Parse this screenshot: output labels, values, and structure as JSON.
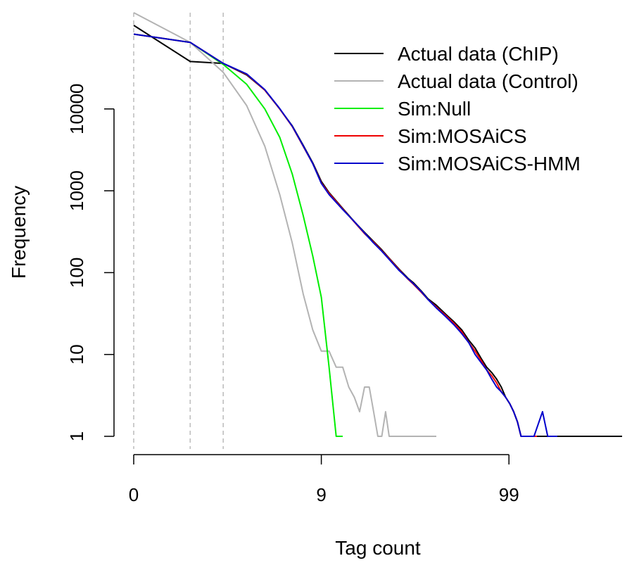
{
  "chart_data": {
    "type": "line",
    "title": "",
    "xlabel": "Tag count",
    "ylabel": "Frequency",
    "x_scale": "log1p",
    "y_scale": "log",
    "xlim": [
      0,
      400
    ],
    "ylim": [
      1,
      150000
    ],
    "x_ticks": [
      0,
      9,
      99
    ],
    "x_tick_labels": [
      "0",
      "9",
      "99"
    ],
    "y_ticks": [
      1,
      10,
      100,
      1000,
      10000
    ],
    "y_tick_labels": [
      "1",
      "10",
      "100",
      "1000",
      "10000"
    ],
    "grid": false,
    "legend_position": "top-right",
    "reference_lines": {
      "style": "dashed",
      "color": "#bfbfbf",
      "x": [
        0,
        1,
        2
      ]
    },
    "series": [
      {
        "name": "Actual data (ChIP)",
        "color": "#000000",
        "points": [
          [
            0,
            105000
          ],
          [
            1,
            38000
          ],
          [
            2,
            36000
          ],
          [
            3,
            26000
          ],
          [
            4,
            17000
          ],
          [
            5,
            10000
          ],
          [
            6,
            6200
          ],
          [
            7,
            3600
          ],
          [
            8,
            2200
          ],
          [
            9,
            1300
          ],
          [
            10,
            950
          ],
          [
            12,
            610
          ],
          [
            14,
            420
          ],
          [
            16,
            310
          ],
          [
            18,
            240
          ],
          [
            20,
            190
          ],
          [
            22,
            150
          ],
          [
            25,
            110
          ],
          [
            28,
            85
          ],
          [
            30,
            75
          ],
          [
            33,
            60
          ],
          [
            36,
            48
          ],
          [
            40,
            40
          ],
          [
            45,
            31
          ],
          [
            50,
            25
          ],
          [
            55,
            20
          ],
          [
            60,
            15
          ],
          [
            65,
            12
          ],
          [
            70,
            9
          ],
          [
            75,
            7
          ],
          [
            80,
            6
          ],
          [
            85,
            5
          ],
          [
            90,
            4
          ],
          [
            95,
            3
          ],
          [
            100,
            2.5
          ],
          [
            105,
            2
          ],
          [
            110,
            1.5
          ],
          [
            115,
            1
          ],
          [
            125,
            1
          ],
          [
            140,
            1
          ],
          [
            160,
            1
          ],
          [
            200,
            1
          ],
          [
            300,
            1
          ],
          [
            400,
            1
          ]
        ]
      },
      {
        "name": "Actual data (Control)",
        "color": "#b3b3b3",
        "points": [
          [
            0,
            150000
          ],
          [
            1,
            65000
          ],
          [
            2,
            28000
          ],
          [
            3,
            11000
          ],
          [
            4,
            3500
          ],
          [
            5,
            900
          ],
          [
            6,
            230
          ],
          [
            7,
            55
          ],
          [
            8,
            20
          ],
          [
            9,
            11
          ],
          [
            10,
            11
          ],
          [
            11,
            7
          ],
          [
            12,
            7
          ],
          [
            13,
            4
          ],
          [
            14,
            3
          ],
          [
            15,
            2
          ],
          [
            16,
            4
          ],
          [
            17,
            4
          ],
          [
            18,
            2
          ],
          [
            19,
            1
          ],
          [
            20,
            1
          ],
          [
            21,
            2
          ],
          [
            22,
            1
          ],
          [
            30,
            1
          ],
          [
            40,
            1
          ]
        ]
      },
      {
        "name": "Sim:Null",
        "color": "#00ee00",
        "points": [
          [
            0,
            82000
          ],
          [
            1,
            65000
          ],
          [
            2,
            35000
          ],
          [
            3,
            20000
          ],
          [
            4,
            10000
          ],
          [
            5,
            4500
          ],
          [
            6,
            1600
          ],
          [
            7,
            500
          ],
          [
            8,
            160
          ],
          [
            9,
            50
          ],
          [
            10,
            7
          ],
          [
            11,
            1
          ],
          [
            12,
            1
          ]
        ]
      },
      {
        "name": "Sim:MOSAiCS",
        "color": "#ee0000",
        "points": [
          [
            0,
            82000
          ],
          [
            1,
            65000
          ],
          [
            2,
            36000
          ],
          [
            3,
            26500
          ],
          [
            4,
            17000
          ],
          [
            5,
            10000
          ],
          [
            6,
            6100
          ],
          [
            7,
            3500
          ],
          [
            8,
            2150
          ],
          [
            9,
            1250
          ],
          [
            10,
            930
          ],
          [
            12,
            600
          ],
          [
            14,
            415
          ],
          [
            16,
            300
          ],
          [
            18,
            235
          ],
          [
            20,
            185
          ],
          [
            22,
            148
          ],
          [
            25,
            108
          ],
          [
            28,
            83
          ],
          [
            30,
            72
          ],
          [
            33,
            58
          ],
          [
            36,
            47
          ],
          [
            40,
            38
          ],
          [
            45,
            30
          ],
          [
            50,
            24
          ],
          [
            55,
            19
          ],
          [
            60,
            14
          ],
          [
            65,
            11
          ],
          [
            70,
            8.5
          ],
          [
            75,
            6.5
          ],
          [
            80,
            5.5
          ],
          [
            85,
            4.5
          ],
          [
            90,
            3.5
          ],
          [
            95,
            3
          ],
          [
            100,
            2.5
          ],
          [
            105,
            2
          ],
          [
            110,
            1.5
          ],
          [
            115,
            1
          ],
          [
            120,
            1
          ],
          [
            130,
            1
          ],
          [
            140,
            1
          ]
        ]
      },
      {
        "name": "Sim:MOSAiCS-HMM",
        "color": "#0000cc",
        "points": [
          [
            0,
            82000
          ],
          [
            1,
            65000
          ],
          [
            2,
            36000
          ],
          [
            3,
            26800
          ],
          [
            4,
            17200
          ],
          [
            5,
            10100
          ],
          [
            6,
            6150
          ],
          [
            7,
            3550
          ],
          [
            8,
            2150
          ],
          [
            9,
            1230
          ],
          [
            10,
            900
          ],
          [
            12,
            590
          ],
          [
            14,
            420
          ],
          [
            16,
            305
          ],
          [
            18,
            230
          ],
          [
            20,
            183
          ],
          [
            22,
            145
          ],
          [
            25,
            106
          ],
          [
            28,
            84
          ],
          [
            30,
            73
          ],
          [
            33,
            59
          ],
          [
            36,
            47
          ],
          [
            40,
            37
          ],
          [
            45,
            29
          ],
          [
            50,
            23
          ],
          [
            55,
            18
          ],
          [
            60,
            14
          ],
          [
            65,
            10
          ],
          [
            70,
            8
          ],
          [
            75,
            6.5
          ],
          [
            80,
            5
          ],
          [
            85,
            4
          ],
          [
            90,
            3.5
          ],
          [
            95,
            3
          ],
          [
            100,
            2.5
          ],
          [
            105,
            2
          ],
          [
            110,
            1.5
          ],
          [
            115,
            1
          ],
          [
            125,
            1
          ],
          [
            135,
            1
          ],
          [
            150,
            2
          ],
          [
            160,
            1
          ],
          [
            180,
            1
          ]
        ]
      }
    ]
  }
}
